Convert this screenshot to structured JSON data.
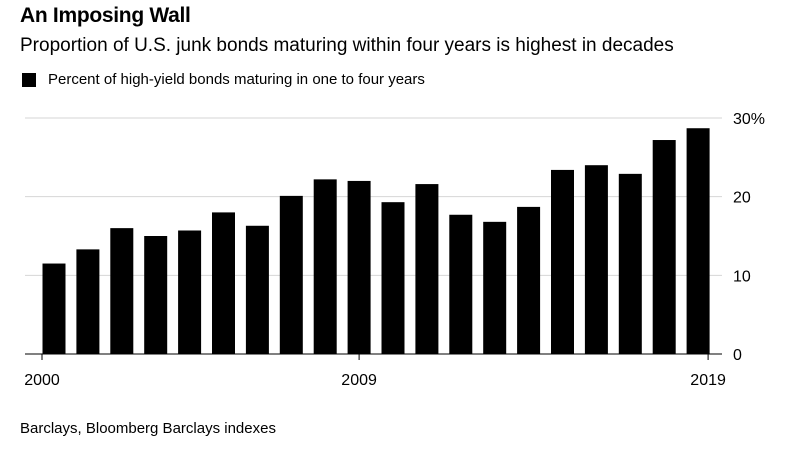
{
  "title": "An Imposing Wall",
  "subtitle": "Proportion of U.S. junk bonds maturing within four years is highest in decades",
  "source": "Barclays, Bloomberg Barclays indexes",
  "chart_data": {
    "type": "bar",
    "series": [
      {
        "name": "Percent of high-yield bonds maturing in one to four years",
        "color": "#000000",
        "values": [
          11.5,
          13.3,
          16.0,
          15.0,
          15.7,
          18.0,
          16.3,
          20.1,
          22.2,
          22.0,
          19.3,
          21.6,
          17.7,
          16.8,
          18.7,
          23.4,
          24.0,
          22.9,
          27.2,
          28.7
        ]
      }
    ],
    "categories": [
      2000,
      2001,
      2002,
      2003,
      2004,
      2005,
      2006,
      2007,
      2008,
      2009,
      2010,
      2011,
      2012,
      2013,
      2014,
      2015,
      2016,
      2017,
      2018,
      2019
    ],
    "x_tick_labels": [
      "2000",
      "2009",
      "2019"
    ],
    "y_tick_labels": [
      "0",
      "10",
      "20",
      "30%"
    ],
    "y_ticks": [
      0,
      10,
      20,
      30
    ],
    "ylim": [
      0,
      30
    ],
    "grid": true,
    "y_axis_side": "right",
    "legend_position": "top-left"
  }
}
